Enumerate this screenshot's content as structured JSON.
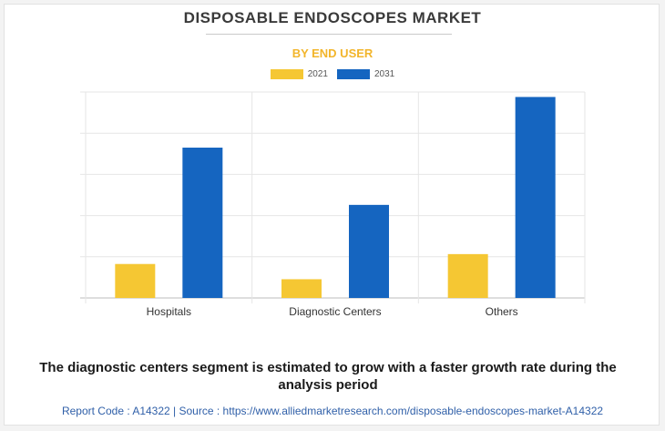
{
  "chart_data": {
    "type": "bar",
    "title": "DISPOSABLE ENDOSCOPES MARKET",
    "subtitle": "BY END USER",
    "categories": [
      "Hospitals",
      "Diagnostic Centers",
      "Others"
    ],
    "series": [
      {
        "name": "2021",
        "color": "#f5c733",
        "values": [
          16.5,
          9.1,
          21.3
        ]
      },
      {
        "name": "2031",
        "color": "#1565c0",
        "values": [
          73.0,
          45.2,
          97.6
        ]
      }
    ],
    "ylim": [
      0,
      100
    ],
    "y_gridlines": [
      0,
      20,
      40,
      60,
      80,
      100
    ],
    "grid": true,
    "legend_position": "top-center",
    "xlabel": "",
    "ylabel": ""
  },
  "caption": "The diagnostic centers segment is estimated to grow with a faster growth rate during the analysis period",
  "source_line": "Report Code : A14322  |  Source : https://www.alliedmarketresearch.com/disposable-endoscopes-market-A14322",
  "colors": {
    "title": "#3a3a3a",
    "subtitle": "#f2b52b",
    "grid": "#e6e6e6",
    "axis": "#bdbdbd"
  }
}
